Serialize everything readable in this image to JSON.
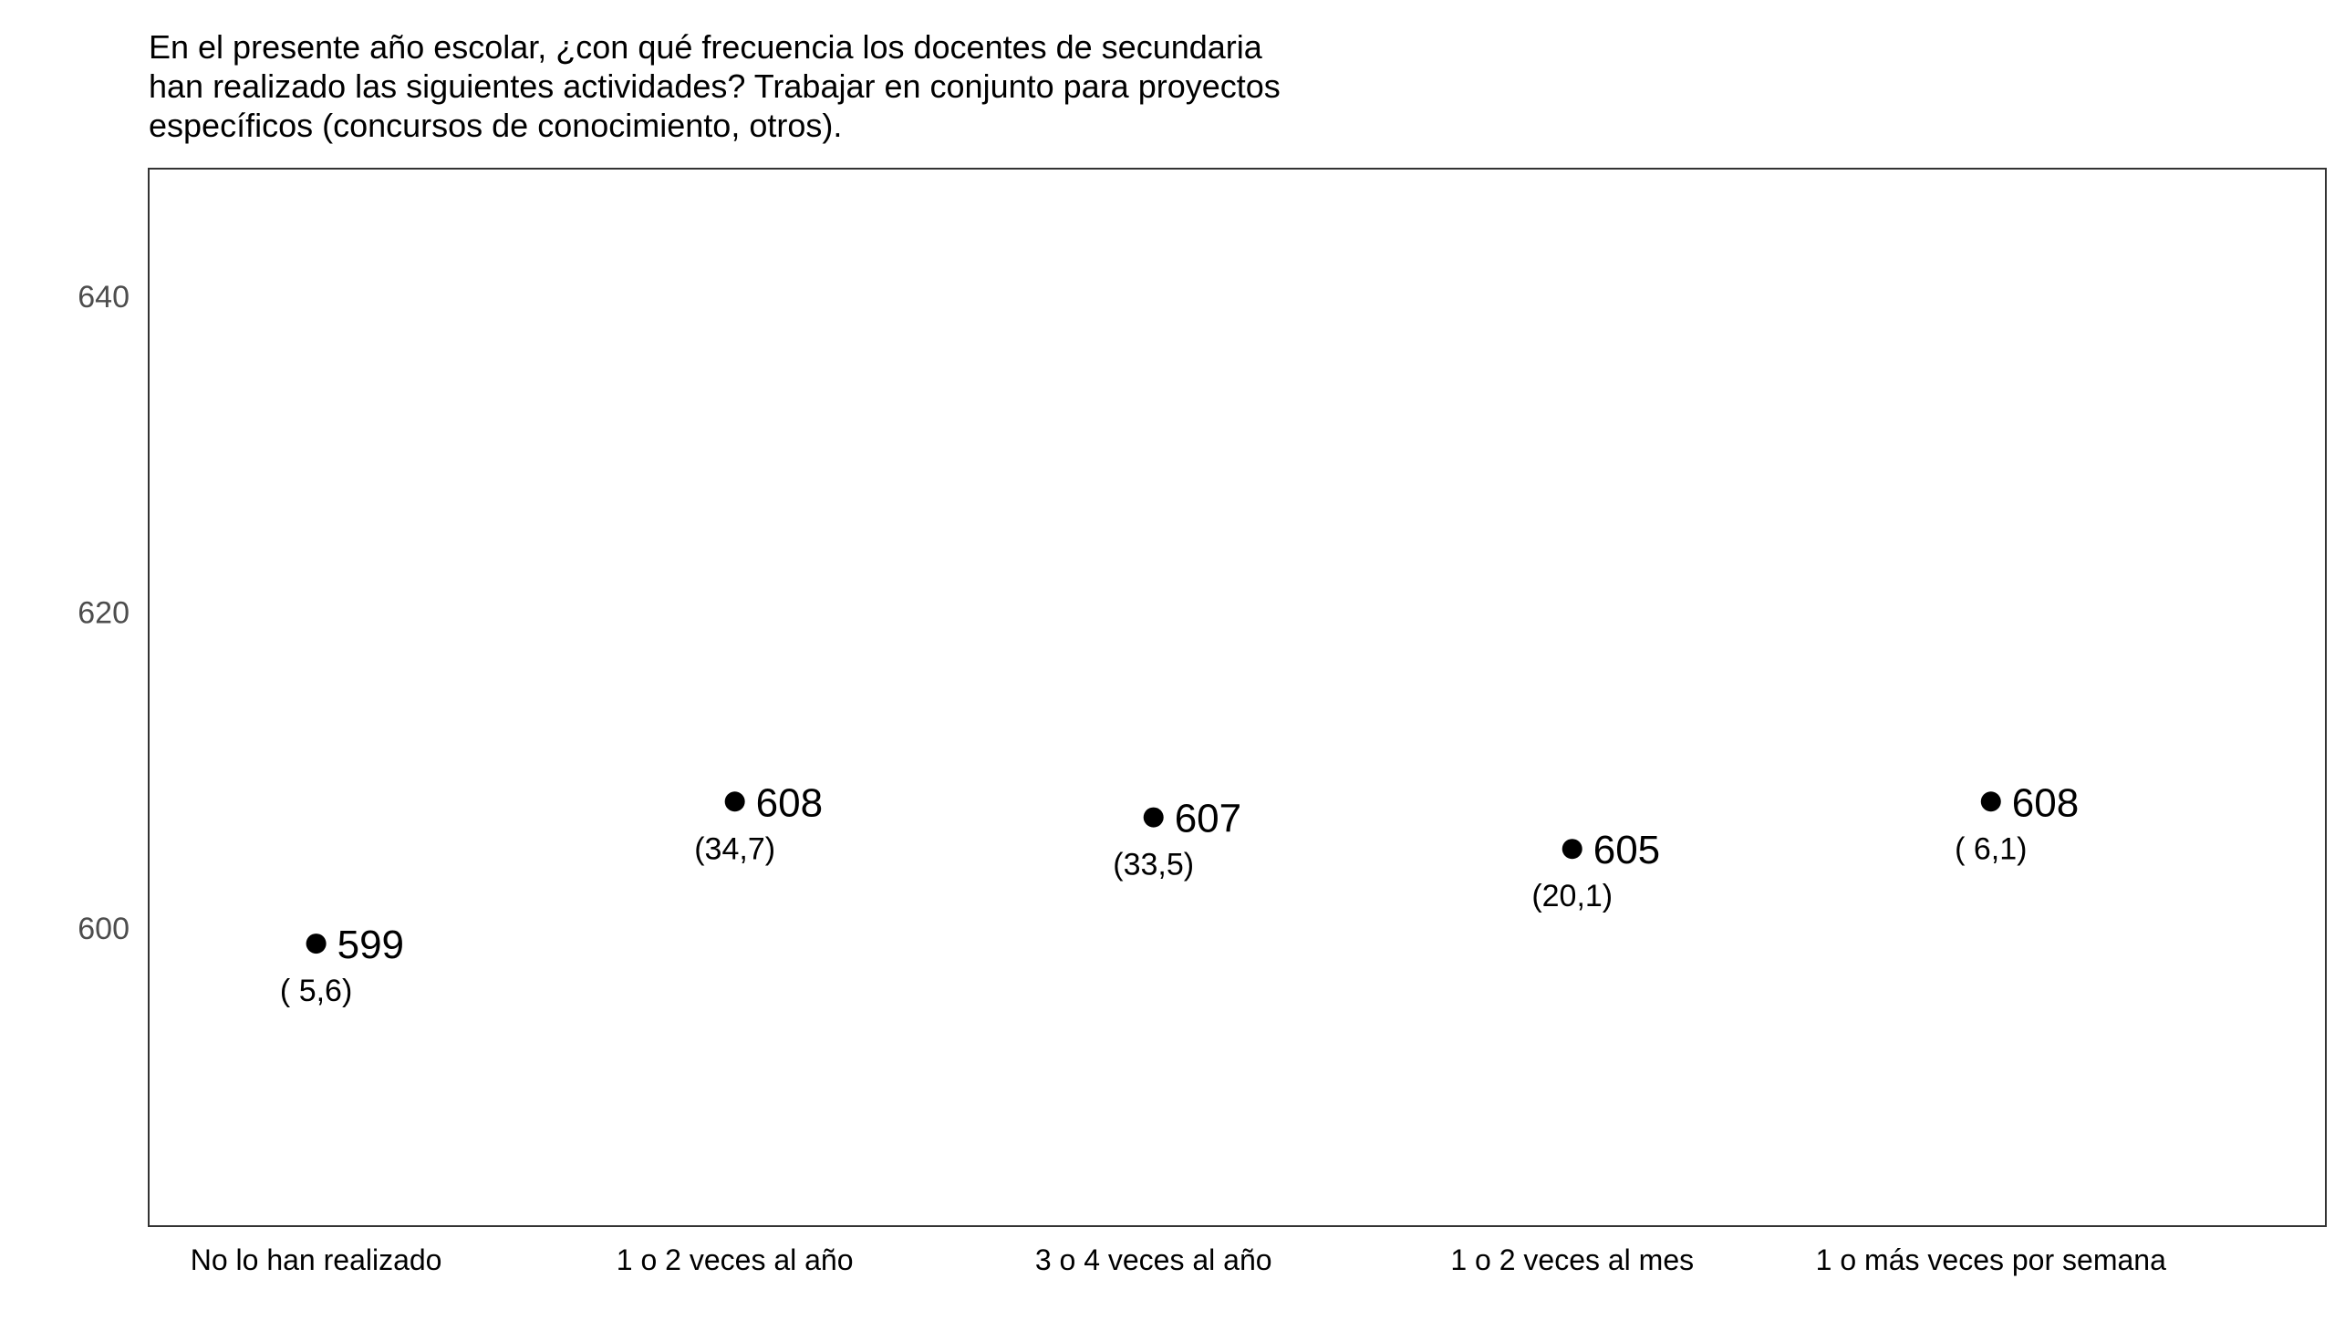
{
  "chart_data": {
    "type": "scatter",
    "title_lines": [
      "En el presente año escolar, ¿con qué frecuencia los docentes de secundaria",
      "han realizado las siguientes actividades? Trabajar en conjunto para proyectos",
      "específicos (concursos de conocimiento, otros)."
    ],
    "categories": [
      "No lo han realizado",
      "1 o 2 veces al año",
      "3 o 4 veces al año",
      "1 o 2 veces al mes",
      "1 o más veces por semana"
    ],
    "values": [
      599,
      608,
      607,
      605,
      608
    ],
    "value_labels": [
      "599",
      "608",
      "607",
      "605",
      "608"
    ],
    "percent_labels": [
      "( 5,6)",
      "(34,7)",
      "(33,5)",
      "(20,1)",
      "( 6,1)"
    ],
    "ylim": [
      581.1,
      648.1
    ],
    "yticks": [
      600,
      620,
      640
    ],
    "ytick_labels": [
      "600",
      "620",
      "640"
    ],
    "xlabel": "",
    "ylabel": "",
    "grid": false,
    "legend": "none",
    "colors": {
      "point": "#000000",
      "frame": "#333333",
      "tick_text": "#4d4d4d"
    }
  }
}
